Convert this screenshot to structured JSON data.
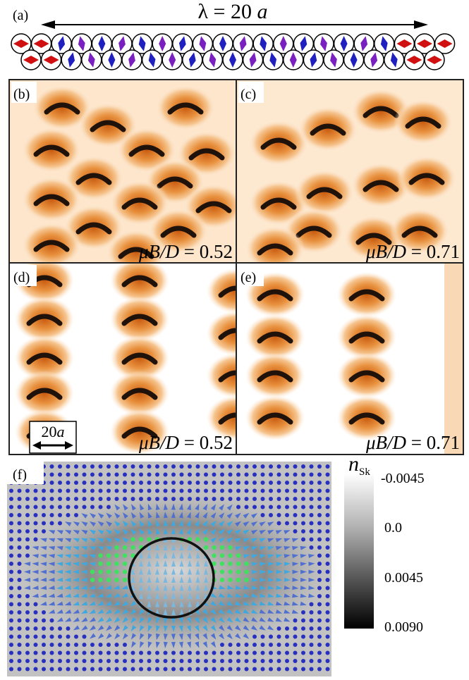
{
  "panel_a": {
    "label": "(a)",
    "lambda_text": "λ = 20",
    "lambda_unit": "a"
  },
  "panels": [
    {
      "label": "(b)",
      "field_symbol": "μB/D",
      "field_value": "= 0.52"
    },
    {
      "label": "(c)",
      "field_symbol": "μB/D",
      "field_value": "= 0.71"
    },
    {
      "label": "(d)",
      "field_symbol": "μB/D",
      "field_value": "= 0.52"
    },
    {
      "label": "(e)",
      "field_symbol": "μB/D",
      "field_value": "= 0.71"
    }
  ],
  "scale_bar": {
    "number": "20",
    "unit": "a"
  },
  "panel_f": {
    "label": "(f)",
    "colorbar_symbol": "n",
    "colorbar_subscript": "Sk",
    "colorbar_ticks": [
      "-0.0045",
      "0.0",
      "0.0045",
      "0.0090"
    ]
  }
}
